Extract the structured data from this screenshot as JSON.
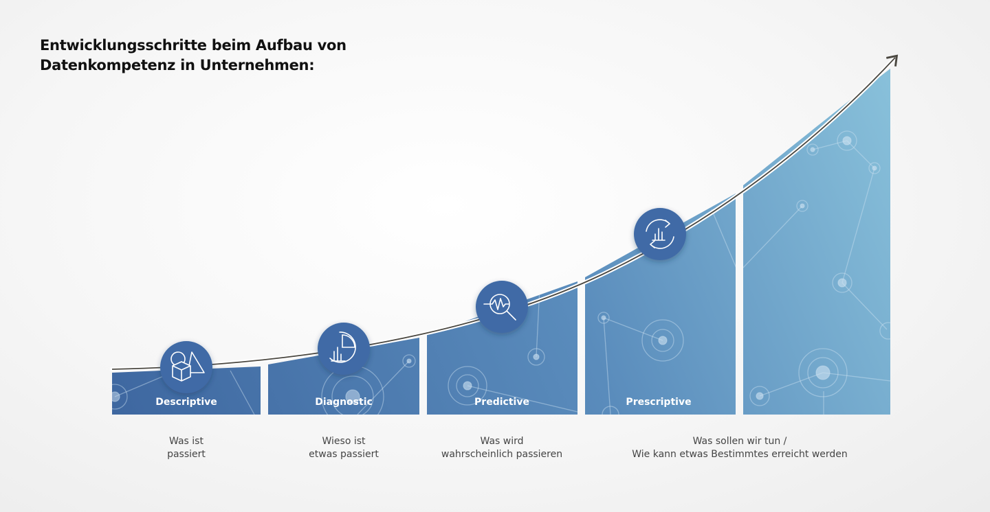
{
  "title": {
    "line1": "Entwicklungsschritte beim Aufbau von",
    "line2": "Datenkompetenz in Unternehmen:"
  },
  "steps": [
    {
      "label": "Descriptive",
      "icon": "shapes-icon",
      "desc_line1": "Was ist",
      "desc_line2": "passiert"
    },
    {
      "label": "Diagnostic",
      "icon": "chart-analysis-icon",
      "desc_line1": "Wieso ist",
      "desc_line2": "etwas passiert"
    },
    {
      "label": "Predictive",
      "icon": "magnifier-pulse-icon",
      "desc_line1": "Was wird",
      "desc_line2": "wahrscheinlich passieren"
    },
    {
      "label": "Prescriptive",
      "icon": "cycle-chart-icon",
      "desc_line1": "Was sollen wir tun /",
      "desc_line2": "Wie kann etwas Bestimmtes erreicht werden"
    }
  ],
  "colors": {
    "bar_dark": "#3f6aa3",
    "bar_light": "#86bdd8",
    "icon_circle": "#3f6aa6",
    "curve": "#4a4740"
  }
}
